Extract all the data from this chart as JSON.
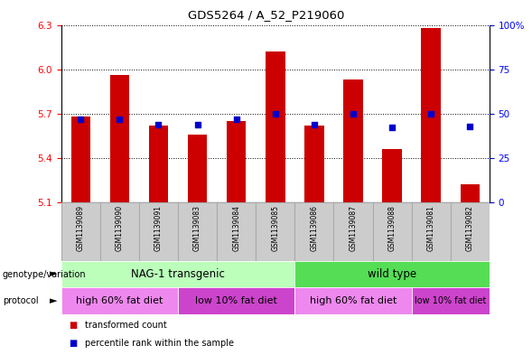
{
  "title": "GDS5264 / A_52_P219060",
  "samples": [
    "GSM1139089",
    "GSM1139090",
    "GSM1139091",
    "GSM1139083",
    "GSM1139084",
    "GSM1139085",
    "GSM1139086",
    "GSM1139087",
    "GSM1139088",
    "GSM1139081",
    "GSM1139082"
  ],
  "transformed_counts": [
    5.68,
    5.96,
    5.62,
    5.56,
    5.65,
    6.12,
    5.62,
    5.93,
    5.46,
    6.28,
    5.22
  ],
  "percentile_ranks": [
    47,
    47,
    44,
    44,
    47,
    50,
    44,
    50,
    42,
    50,
    43
  ],
  "ylim_left": [
    5.1,
    6.3
  ],
  "ylim_right": [
    0,
    100
  ],
  "yticks_left": [
    5.1,
    5.4,
    5.7,
    6.0,
    6.3
  ],
  "yticks_right": [
    0,
    25,
    50,
    75,
    100
  ],
  "bar_color": "#cc0000",
  "dot_color": "#0000cc",
  "genotype_groups": [
    {
      "label": "NAG-1 transgenic",
      "start": 0,
      "end": 6,
      "color": "#bbffbb"
    },
    {
      "label": "wild type",
      "start": 6,
      "end": 11,
      "color": "#55dd55"
    }
  ],
  "protocol_groups": [
    {
      "label": "high 60% fat diet",
      "start": 0,
      "end": 3,
      "color": "#ee88ee"
    },
    {
      "label": "low 10% fat diet",
      "start": 3,
      "end": 6,
      "color": "#cc44cc"
    },
    {
      "label": "high 60% fat diet",
      "start": 6,
      "end": 9,
      "color": "#ee88ee"
    },
    {
      "label": "low 10% fat diet",
      "start": 9,
      "end": 11,
      "color": "#cc44cc"
    }
  ],
  "legend_items": [
    {
      "label": "transformed count",
      "color": "#cc0000"
    },
    {
      "label": "percentile rank within the sample",
      "color": "#0000cc"
    }
  ],
  "label_bg": "#cccccc",
  "label_border": "#aaaaaa"
}
